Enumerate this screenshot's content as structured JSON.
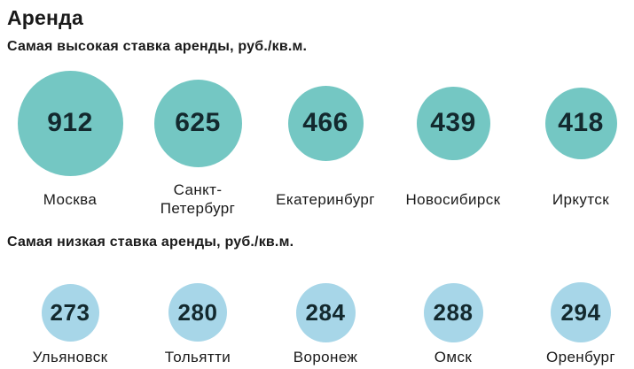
{
  "page": {
    "title": "Аренда"
  },
  "colors": {
    "high_bubble": "#74c7c3",
    "low_bubble": "#a7d6e8",
    "number_text": "#13292e",
    "text": "#1a1a1a",
    "background": "#ffffff"
  },
  "chart_data": [
    {
      "type": "bubble",
      "title": "Самая высокая ставка аренды, руб./кв.м.",
      "categories": [
        "Москва",
        "Санкт-Петербург",
        "Екатеринбург",
        "Новосибирск",
        "Иркутск"
      ],
      "values": [
        912,
        625,
        466,
        439,
        418
      ],
      "unit": "руб./кв.м.",
      "bubble_color": "#74c7c3",
      "size_scale": 3.95,
      "layout": "single-horizontal-row, bubbles area-proportional to value, value label inside bubble, city label below"
    },
    {
      "type": "bubble",
      "title": "Самая низкая ставка аренды, руб./кв.м.",
      "categories": [
        "Ульяновск",
        "Тольятти",
        "Воронеж",
        "Омск",
        "Оренбург"
      ],
      "values": [
        273,
        280,
        284,
        288,
        294
      ],
      "unit": "руб./кв.м.",
      "bubble_color": "#a7d6e8",
      "size_scale": 3.95,
      "layout": "single-horizontal-row, bubbles area-proportional to value, value label inside bubble, city label below"
    }
  ]
}
